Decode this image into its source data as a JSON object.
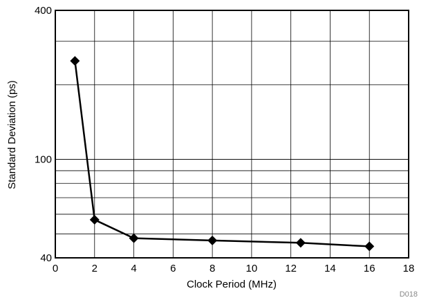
{
  "chart_data": {
    "type": "line",
    "title": "",
    "xlabel": "Clock Period (MHz)",
    "ylabel": "Standard Deviation (ps)",
    "xlim": [
      0,
      18
    ],
    "ylim": [
      40,
      400
    ],
    "y_scale": "log",
    "x_ticks": [
      0,
      2,
      4,
      6,
      8,
      10,
      12,
      14,
      16,
      18
    ],
    "y_tick_labels": [
      40,
      100,
      400
    ],
    "y_gridlines": [
      50,
      60,
      70,
      80,
      90,
      100,
      200,
      300
    ],
    "grid": true,
    "legend": "none",
    "marker": "diamond",
    "line_color": "#000000",
    "series": [
      {
        "x": [
          1,
          2,
          4,
          8,
          12.5,
          16
        ],
        "y": [
          250,
          57,
          48,
          47,
          46,
          44.5
        ]
      }
    ],
    "figure_code": "D018"
  }
}
